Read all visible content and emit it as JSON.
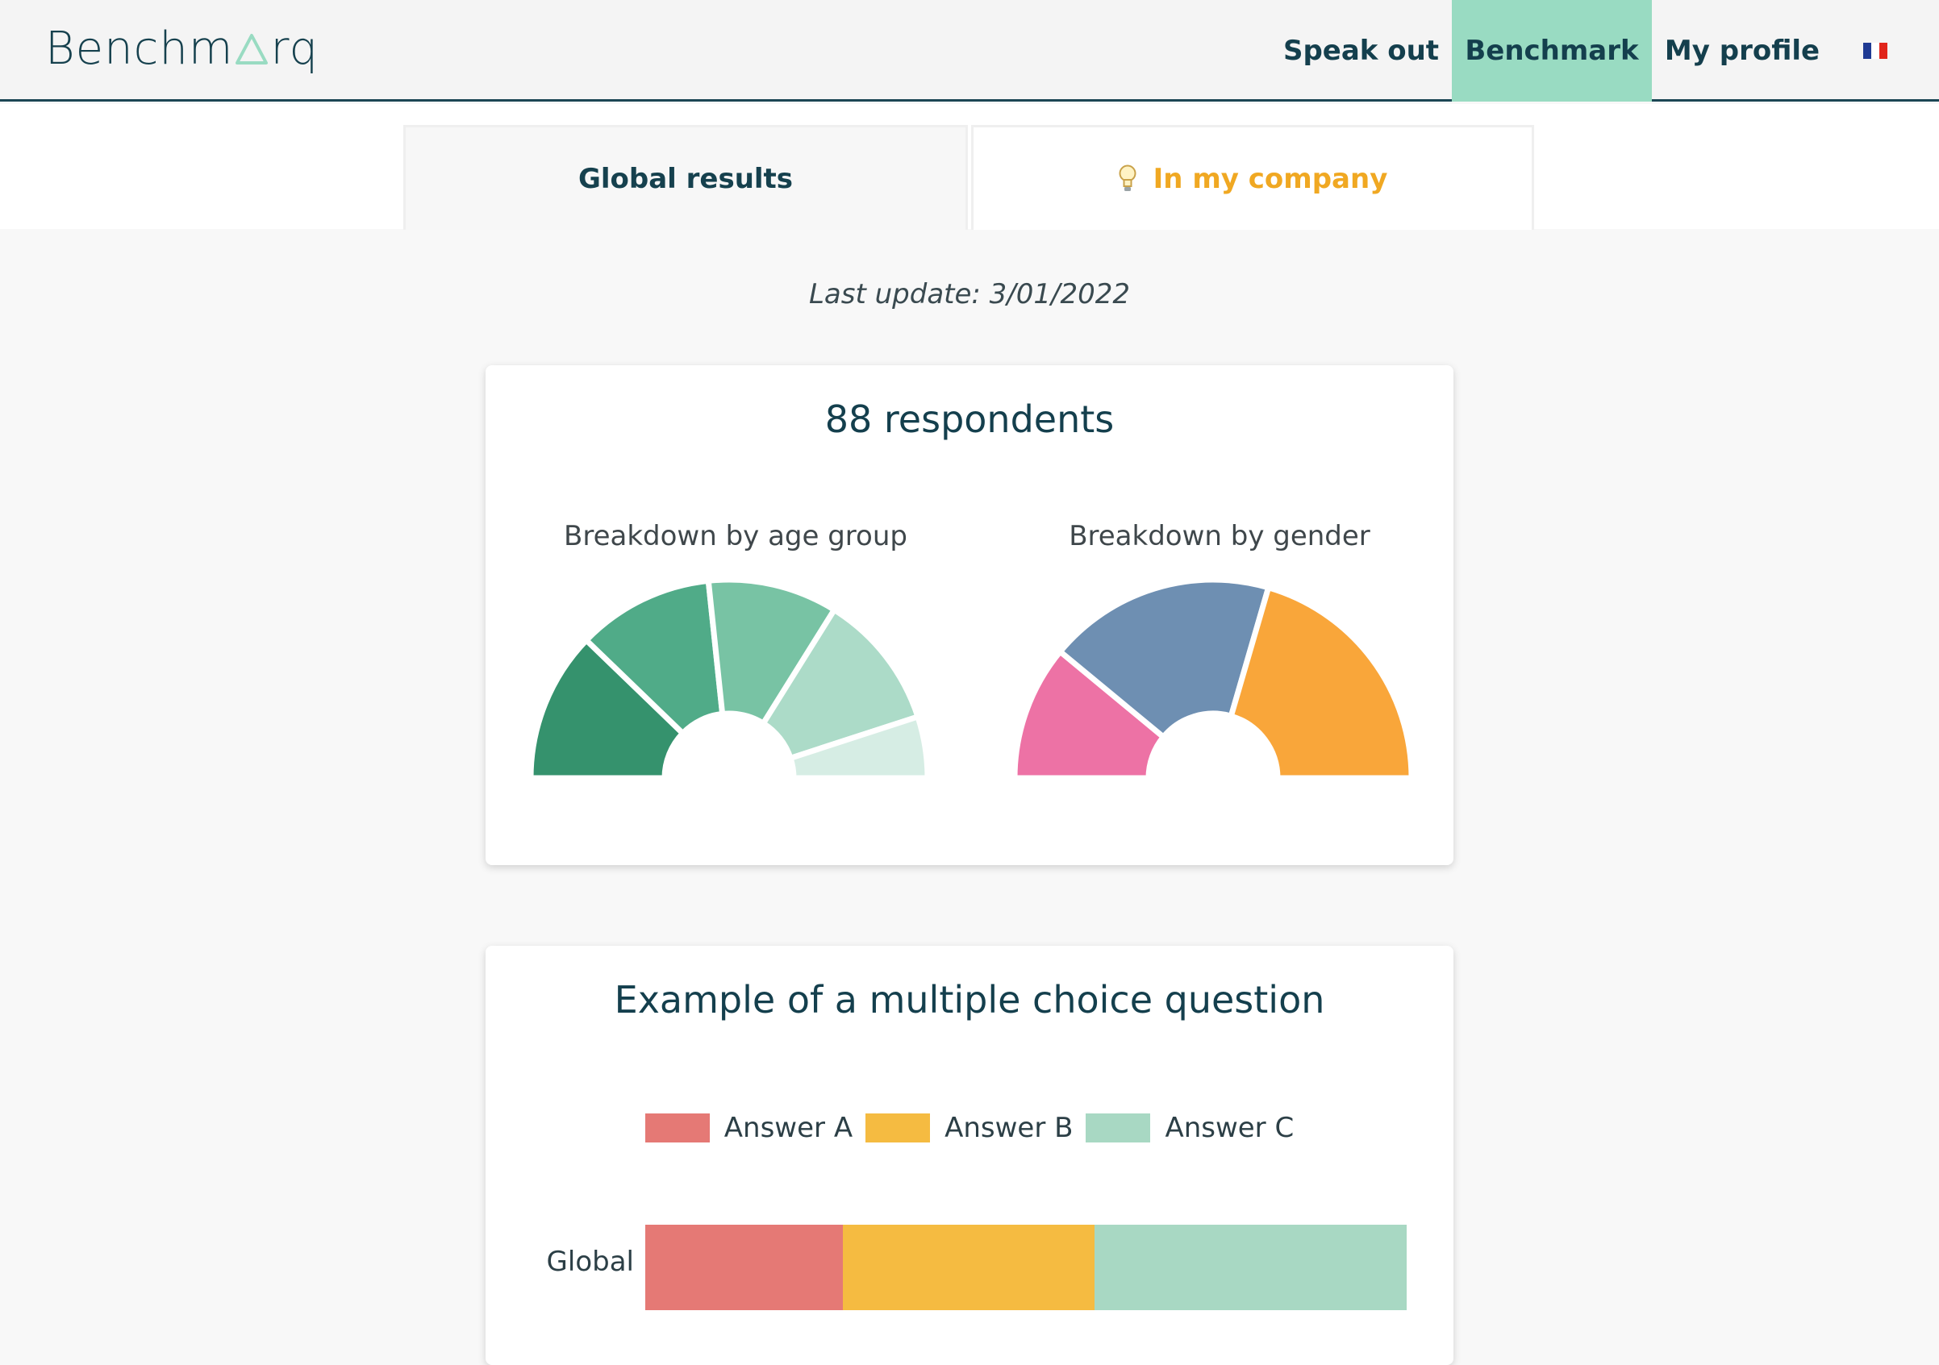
{
  "header": {
    "logo_text_before": "Benchm",
    "logo_text_after": "rq",
    "nav": [
      {
        "label": "Speak out",
        "active": false
      },
      {
        "label": "Benchmark",
        "active": true
      },
      {
        "label": "My profile",
        "active": false
      }
    ],
    "language_flag": "flag-fr-icon"
  },
  "tabs": {
    "global_label": "Global results",
    "company_label": "In my company",
    "company_icon": "lightbulb-icon"
  },
  "last_update": "Last update: 3/01/2022",
  "respondents_card": {
    "title": "88 respondents",
    "age_title": "Breakdown by age group",
    "gender_title": "Breakdown by gender"
  },
  "question_card": {
    "title": "Example of a multiple choice question"
  },
  "colors": {
    "accent": "#99dbc2",
    "dark": "#143f4d",
    "company_tab": "#f0a822"
  },
  "chart_data": [
    {
      "type": "pie",
      "variant": "half-donut",
      "title": "Breakdown by age group",
      "values": [
        0.22,
        0.2,
        0.19,
        0.2,
        0.09
      ],
      "colors": [
        "#35926d",
        "#50ab88",
        "#78c3a4",
        "#acdbc8",
        "#d6ede4"
      ]
    },
    {
      "type": "pie",
      "variant": "half-donut",
      "title": "Breakdown by gender",
      "values": [
        0.22,
        0.37,
        0.41
      ],
      "colors": [
        "#ed72a5",
        "#6e8fb2",
        "#f9a63a"
      ]
    },
    {
      "type": "bar",
      "orientation": "horizontal-stacked",
      "title": "Example of a multiple choice question",
      "categories": [
        "Global"
      ],
      "series": [
        {
          "name": "Answer A",
          "values": [
            26
          ],
          "color": "#e57975"
        },
        {
          "name": "Answer B",
          "values": [
            33
          ],
          "color": "#f5bb41"
        },
        {
          "name": "Answer C",
          "values": [
            41
          ],
          "color": "#a8d8c3"
        }
      ],
      "legend": "top"
    }
  ]
}
